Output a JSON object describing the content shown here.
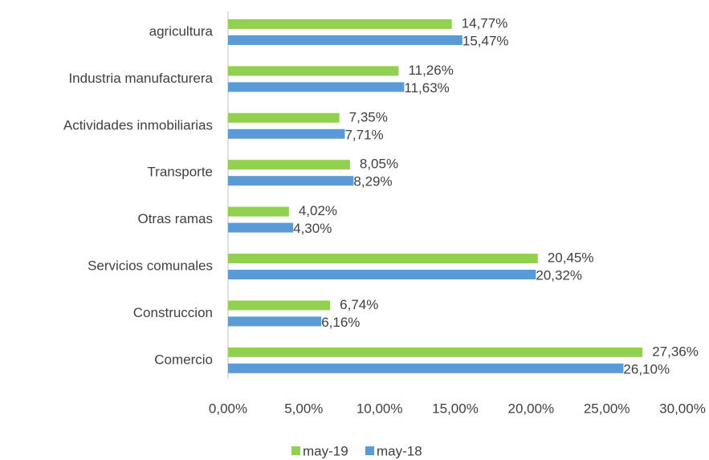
{
  "chart_data": {
    "type": "hbar",
    "categories": [
      "agricultura",
      "Industria manufacturera",
      "Actividades inmobiliarias",
      "Transporte",
      "Otras ramas",
      "Servicios comunales",
      "Construccion",
      "Comercio"
    ],
    "series": [
      {
        "name": "may-19",
        "color": "#92d050",
        "values": [
          14.77,
          11.26,
          7.35,
          8.05,
          4.02,
          20.45,
          6.74,
          27.36
        ],
        "value_labels": [
          "14,77%",
          "11,26%",
          "7,35%",
          "8,05%",
          "4,02%",
          "20,45%",
          "6,74%",
          "27,36%"
        ]
      },
      {
        "name": "may-18",
        "color": "#5b9bd5",
        "values": [
          15.47,
          11.63,
          7.71,
          8.29,
          4.3,
          20.32,
          6.16,
          26.1
        ],
        "value_labels": [
          "15,47%",
          "11,63%",
          "7,71%",
          "8,29%",
          "4,30%",
          "20,32%",
          "6,16%",
          "26,10%"
        ]
      }
    ],
    "xlim": [
      0,
      30
    ],
    "xticks": [
      {
        "value": 0,
        "label": "0,00%"
      },
      {
        "value": 5,
        "label": "5,00%"
      },
      {
        "value": 10,
        "label": "10,00%"
      },
      {
        "value": 15,
        "label": "15,00%"
      },
      {
        "value": 20,
        "label": "20,00%"
      },
      {
        "value": 25,
        "label": "25,00%"
      },
      {
        "value": 30,
        "label": "30,00%"
      }
    ],
    "legend": "bottom"
  }
}
